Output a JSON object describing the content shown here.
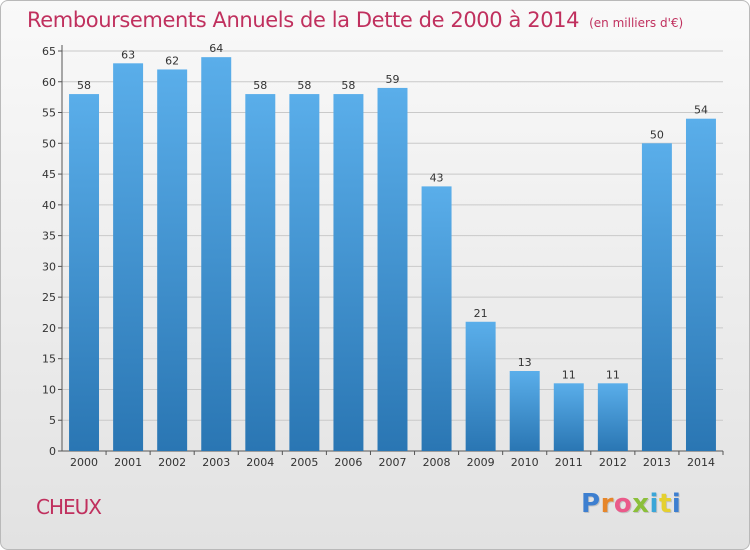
{
  "header": {
    "title": "Remboursements Annuels de la Dette de 2000 à 2014",
    "unit": "(en milliers d'€)"
  },
  "footer": {
    "commune": "CHEUX",
    "brand": "Proxiti"
  },
  "colors": {
    "bar_top": "#5aaeea",
    "bar_bottom": "#2a76b3",
    "title": "#c0305e",
    "grid": "#c9c9c9"
  },
  "chart_data": {
    "type": "bar",
    "title": "Remboursements Annuels de la Dette de 2000 à 2014",
    "subtitle": "(en milliers d'€)",
    "categories": [
      "2000",
      "2001",
      "2002",
      "2003",
      "2004",
      "2005",
      "2006",
      "2007",
      "2008",
      "2009",
      "2010",
      "2011",
      "2012",
      "2013",
      "2014"
    ],
    "values": [
      58,
      63,
      62,
      64,
      58,
      58,
      58,
      59,
      43,
      21,
      13,
      11,
      11,
      50,
      54
    ],
    "ylim": [
      0,
      65
    ],
    "yticks": [
      0,
      5,
      10,
      15,
      20,
      25,
      30,
      35,
      40,
      45,
      50,
      55,
      60,
      65
    ],
    "grid": true,
    "data_labels": true
  }
}
